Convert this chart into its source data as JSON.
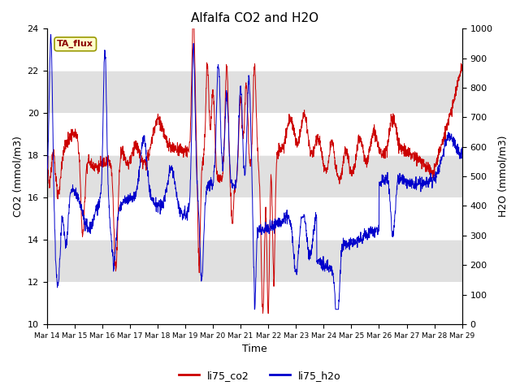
{
  "title": "Alfalfa CO2 and H2O",
  "xlabel": "Time",
  "ylabel_left": "CO2 (mmol/m3)",
  "ylabel_right": "H2O (mmol/m3)",
  "ylim_left": [
    10,
    24
  ],
  "ylim_right": [
    0,
    1000
  ],
  "yticks_left": [
    10,
    12,
    14,
    16,
    18,
    20,
    22,
    24
  ],
  "yticks_right": [
    0,
    100,
    200,
    300,
    400,
    500,
    600,
    700,
    800,
    900,
    1000
  ],
  "xtick_labels": [
    "Mar 14",
    "Mar 15",
    "Mar 16",
    "Mar 17",
    "Mar 18",
    "Mar 19",
    "Mar 20",
    "Mar 21",
    "Mar 22",
    "Mar 23",
    "Mar 24",
    "Mar 25",
    "Mar 26",
    "Mar 27",
    "Mar 28",
    "Mar 29"
  ],
  "color_co2": "#cc0000",
  "color_h2o": "#0000cc",
  "legend_labels": [
    "li75_co2",
    "li75_h2o"
  ],
  "annotation_text": "TA_flux",
  "annotation_color": "#8b0000",
  "annotation_bg": "#ffffcc",
  "band_color": "#e0e0e0",
  "title_fontsize": 11
}
